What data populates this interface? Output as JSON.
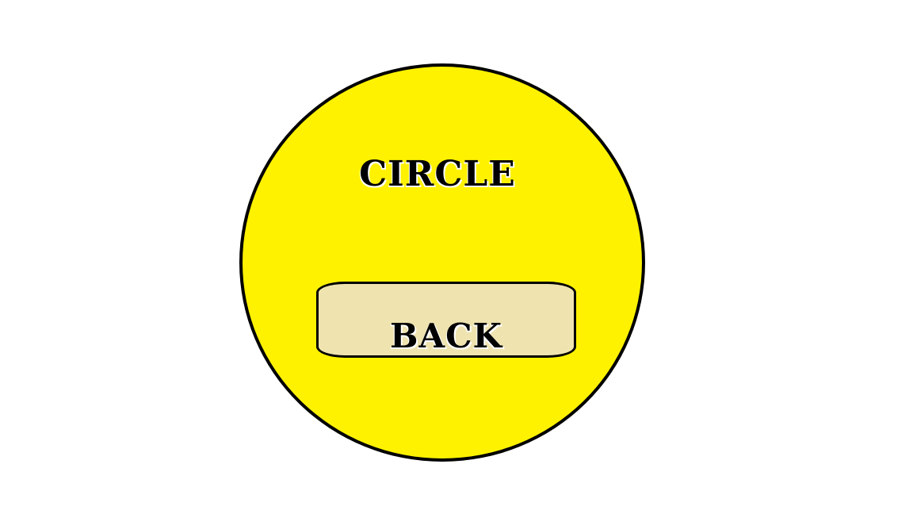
{
  "screen": {
    "title": "CIRCLE",
    "back_button_label": "BACK"
  },
  "colors": {
    "background": "#ffffff",
    "circle_fill": "#fff200",
    "circle_border": "#000000",
    "button_fill": "#efe3b0",
    "button_border": "#000000",
    "text": "#000000"
  }
}
